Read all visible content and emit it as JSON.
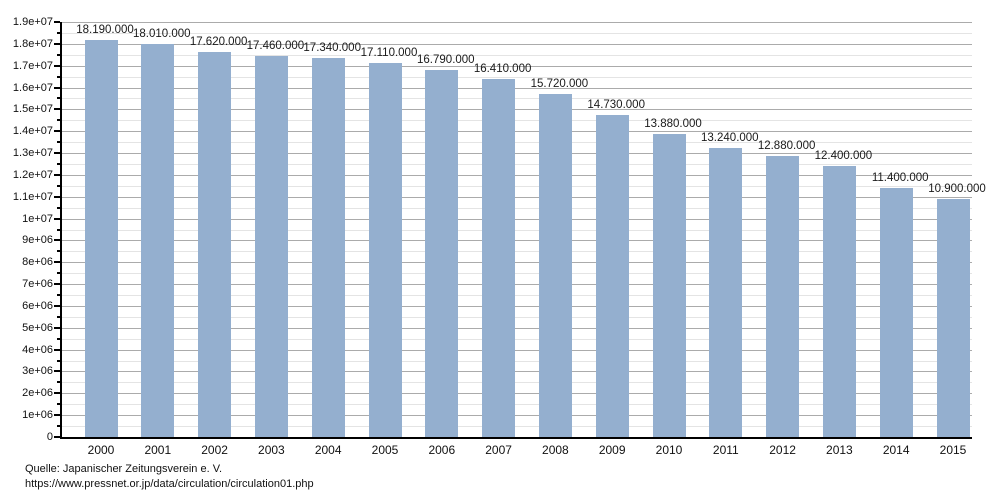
{
  "chart_data": {
    "type": "bar",
    "title": "",
    "xlabel": "",
    "ylabel": "",
    "categories": [
      "2000",
      "2001",
      "2002",
      "2003",
      "2004",
      "2005",
      "2006",
      "2007",
      "2008",
      "2009",
      "2010",
      "2011",
      "2012",
      "2013",
      "2014",
      "2015"
    ],
    "values": [
      18190000,
      18010000,
      17620000,
      17460000,
      17340000,
      17110000,
      16790000,
      16410000,
      15720000,
      14730000,
      13880000,
      13240000,
      12880000,
      12400000,
      11400000,
      10900000
    ],
    "value_labels": [
      "18.190.000",
      "18.010.000",
      "17.620.000",
      "17.460.000",
      "17.340.000",
      "17.110.000",
      "16.790.000",
      "16.410.000",
      "15.720.000",
      "14.730.000",
      "13.880.000",
      "13.240.000",
      "12.880.000",
      "12.400.000",
      "11.400.000",
      "10.900.000"
    ],
    "ylim": [
      0,
      19000000
    ],
    "ytick_step": 1000000,
    "minor_tick_step": 500000,
    "ytick_labels": [
      "0",
      "1e+06",
      "2e+06",
      "3e+06",
      "4e+06",
      "5e+06",
      "6e+06",
      "7e+06",
      "8e+06",
      "9e+06",
      "1e+07",
      "1.1e+07",
      "1.2e+07",
      "1.3e+07",
      "1.4e+07",
      "1.5e+07",
      "1.6e+07",
      "1.7e+07",
      "1.8e+07",
      "1.9e+07"
    ],
    "grid": "on",
    "legend": "none",
    "colors": {
      "bar": "#94afcf",
      "grid_major": "#ababab",
      "grid_minor": "#e4e4e4",
      "axis": "#000000",
      "text": "#1a1a1a"
    }
  },
  "footer": {
    "source_line1": "Quelle: Japanischer Zeitungsverein e. V.",
    "source_line2": "https://www.pressnet.or.jp/data/circulation/circulation01.php"
  }
}
